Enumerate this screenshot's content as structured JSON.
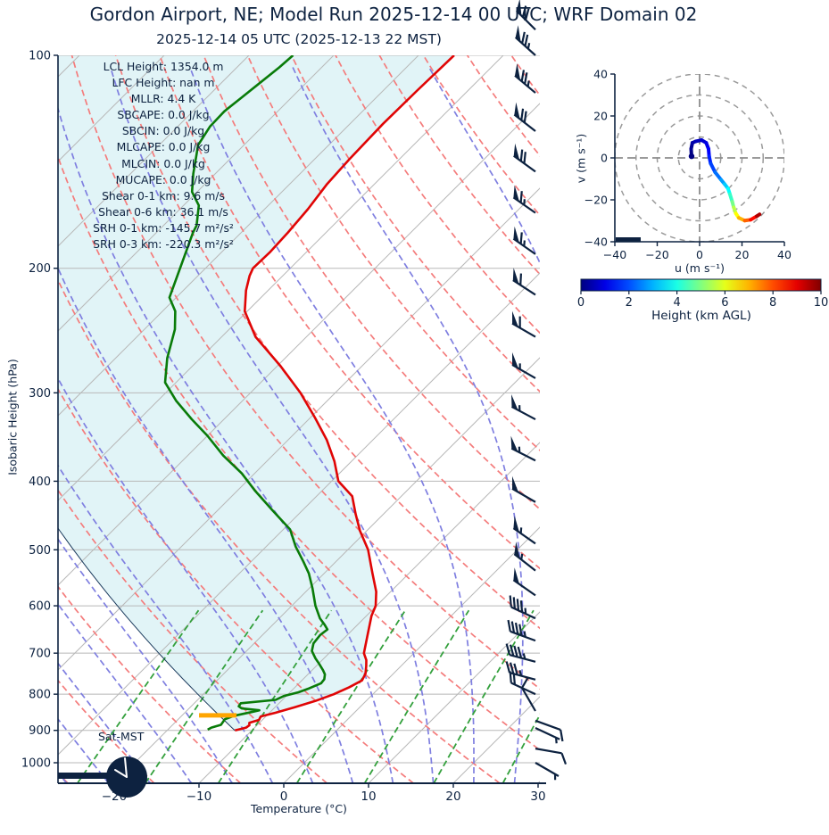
{
  "header": {
    "title": "Gordon Airport, NE; Model Run 2025-12-14 00 UTC; WRF Domain 02",
    "subtitle": "2025-12-14 05 UTC  (2025-12-13 22 MST)"
  },
  "colors": {
    "accent": "#0d2240",
    "temperature": "#e00505",
    "dewpoint": "#097b09",
    "parcel": "#1a3a5c",
    "isotherm": "#b8b8b8",
    "pressure_grid": "#b8b8b8",
    "dry_adiabat": "#f47c7c",
    "moist_adiabat": "#7f7fe0",
    "mixing_ratio": "#33a03c",
    "shade": "#e1f4f7",
    "lcl_marker": "#ffa500",
    "hodo_grid": "#9a9a9a"
  },
  "skewt": {
    "xlabel": "Temperature (°C)",
    "ylabel": "Isobaric Height (hPa)",
    "x_ticks": [
      -20,
      -10,
      0,
      10,
      20,
      30
    ],
    "p_ticks": [
      100,
      200,
      300,
      400,
      500,
      600,
      700,
      800,
      900,
      1000
    ],
    "sat_label": "Sat-MST",
    "clock_time_local": "22:00",
    "annotations": [
      "LCL Height: 1354.0 m",
      "LFC Height: nan m",
      "MLLR: 4.4 K",
      "SBCAPE: 0.0 J/kg",
      "SBCIN: 0.0 J/kg",
      "MLCAPE: 0.0 J/kg",
      "MLCIN: 0.0 J/kg",
      "MUCAPE: 0.0 J/kg",
      "Shear 0-1 km: 9.6 m/s",
      "Shear 0-6 km: 36.1 m/s",
      "SRH 0-1 km: -145.7 m²/s²",
      "SRH 0-3 km: -220.3 m²/s²"
    ]
  },
  "hodograph": {
    "xlabel": "u (m s⁻¹)",
    "ylabel": "v (m s⁻¹)",
    "x_ticks": [
      -40,
      -20,
      0,
      20,
      40
    ],
    "y_ticks": [
      -40,
      -20,
      0,
      20,
      40
    ],
    "rings": [
      10,
      20,
      30,
      40
    ]
  },
  "colorbar": {
    "label": "Height (km AGL)",
    "ticks": [
      0,
      2,
      4,
      6,
      8,
      10
    ],
    "min": 0,
    "max": 10,
    "colormap": "jet"
  },
  "chart_data": {
    "type": "line",
    "title": "Skew-T log-P sounding with hodograph, Gordon Airport NE, WRF Domain 02",
    "xlabel": "Temperature (°C)",
    "ylabel": "Isobaric Height (hPa)",
    "x_range": [
      -26.6,
      30.2
    ],
    "p_range": [
      100,
      1069
    ],
    "y_scale": "log",
    "skew_deg": 45,
    "series": [
      {
        "name": "temperature",
        "color": "#e00505",
        "points_p_T": [
          [
            900,
            -12.0
          ],
          [
            892,
            -11.0
          ],
          [
            885,
            -10.9
          ],
          [
            878,
            -11.2
          ],
          [
            870,
            -10.4
          ],
          [
            860,
            -10.6
          ],
          [
            850,
            -9.3
          ],
          [
            835,
            -7.7
          ],
          [
            818,
            -6.0
          ],
          [
            800,
            -4.6
          ],
          [
            782,
            -3.6
          ],
          [
            765,
            -2.9
          ],
          [
            748,
            -3.3
          ],
          [
            730,
            -4.1
          ],
          [
            716,
            -4.8
          ],
          [
            700,
            -5.9
          ],
          [
            660,
            -7.6
          ],
          [
            620,
            -9.4
          ],
          [
            600,
            -10.1
          ],
          [
            573,
            -11.7
          ],
          [
            540,
            -14.3
          ],
          [
            500,
            -17.6
          ],
          [
            470,
            -20.8
          ],
          [
            445,
            -23.3
          ],
          [
            420,
            -25.8
          ],
          [
            400,
            -29.2
          ],
          [
            375,
            -32.0
          ],
          [
            350,
            -35.4
          ],
          [
            325,
            -39.5
          ],
          [
            300,
            -44.1
          ],
          [
            275,
            -49.6
          ],
          [
            250,
            -56.0
          ],
          [
            230,
            -60.3
          ],
          [
            215,
            -62.6
          ],
          [
            205,
            -63.9
          ],
          [
            200,
            -64.4
          ],
          [
            190,
            -64.3
          ],
          [
            178,
            -64.5
          ],
          [
            165,
            -64.9
          ],
          [
            152,
            -65.6
          ],
          [
            140,
            -65.9
          ],
          [
            125,
            -66.1
          ],
          [
            112,
            -66.0
          ],
          [
            100,
            -65.8
          ]
        ]
      },
      {
        "name": "dewpoint",
        "color": "#097b09",
        "points_p_T": [
          [
            898,
            -15.3
          ],
          [
            892,
            -15.1
          ],
          [
            884,
            -14.3
          ],
          [
            876,
            -14.4
          ],
          [
            868,
            -14.5
          ],
          [
            858,
            -13.8
          ],
          [
            848,
            -12.2
          ],
          [
            843,
            -11.5
          ],
          [
            838,
            -13.8
          ],
          [
            832,
            -14.4
          ],
          [
            824,
            -14.5
          ],
          [
            815,
            -10.8
          ],
          [
            805,
            -10.3
          ],
          [
            795,
            -9.0
          ],
          [
            785,
            -8.2
          ],
          [
            772,
            -7.4
          ],
          [
            762,
            -7.5
          ],
          [
            750,
            -8.0
          ],
          [
            740,
            -8.7
          ],
          [
            725,
            -9.9
          ],
          [
            712,
            -11.0
          ],
          [
            695,
            -12.3
          ],
          [
            678,
            -13.0
          ],
          [
            660,
            -13.2
          ],
          [
            648,
            -13.0
          ],
          [
            638,
            -13.9
          ],
          [
            625,
            -15.2
          ],
          [
            600,
            -17.2
          ],
          [
            567,
            -19.6
          ],
          [
            540,
            -21.8
          ],
          [
            520,
            -23.8
          ],
          [
            495,
            -26.5
          ],
          [
            468,
            -29.2
          ],
          [
            440,
            -33.5
          ],
          [
            412,
            -38.0
          ],
          [
            390,
            -41.5
          ],
          [
            368,
            -45.8
          ],
          [
            345,
            -50.0
          ],
          [
            327,
            -53.8
          ],
          [
            308,
            -57.8
          ],
          [
            290,
            -61.3
          ],
          [
            268,
            -63.9
          ],
          [
            244,
            -66.4
          ],
          [
            230,
            -68.5
          ],
          [
            220,
            -70.8
          ],
          [
            200,
            -73.0
          ],
          [
            178,
            -75.7
          ],
          [
            174,
            -76.1
          ],
          [
            163,
            -78.2
          ],
          [
            156,
            -80.6
          ],
          [
            147,
            -82.6
          ],
          [
            138,
            -84.5
          ],
          [
            134,
            -85.4
          ],
          [
            126,
            -86.2
          ],
          [
            120,
            -86.3
          ],
          [
            115,
            -85.9
          ],
          [
            110,
            -85.5
          ],
          [
            104,
            -85.0
          ],
          [
            100,
            -84.8
          ]
        ]
      },
      {
        "name": "parcel_trace",
        "color": "#1a3a5c",
        "start_p_hPa": 900,
        "start_T_C": -12.0,
        "theta_K": 269.1
      }
    ],
    "lcl": {
      "pressure_hPa": 857,
      "temperature_C": -15.8,
      "height_m": 1354.0
    },
    "wind_barbs_p_dir_kt": [
      [
        92,
        315,
        70
      ],
      [
        100,
        312,
        75
      ],
      [
        113,
        310,
        75
      ],
      [
        128,
        308,
        70
      ],
      [
        146,
        306,
        70
      ],
      [
        167,
        305,
        65
      ],
      [
        191,
        305,
        65
      ],
      [
        218,
        303,
        60
      ],
      [
        250,
        300,
        60
      ],
      [
        286,
        300,
        55
      ],
      [
        327,
        298,
        55
      ],
      [
        374,
        297,
        55
      ],
      [
        428,
        300,
        50
      ],
      [
        490,
        305,
        55
      ],
      [
        535,
        308,
        55
      ],
      [
        580,
        305,
        50
      ],
      [
        625,
        295,
        47
      ],
      [
        672,
        290,
        47
      ],
      [
        720,
        285,
        47
      ],
      [
        763,
        285,
        35
      ],
      [
        800,
        295,
        20
      ],
      [
        845,
        330,
        10
      ],
      [
        872,
        110,
        10
      ],
      [
        893,
        115,
        5
      ],
      [
        955,
        100,
        10
      ],
      [
        1000,
        120,
        5
      ]
    ],
    "hodograph": {
      "u_range": [
        -40,
        40
      ],
      "v_range": [
        -40,
        40
      ],
      "rings": [
        10,
        20,
        30,
        40
      ],
      "points_u_v_hkm": [
        [
          -3.8,
          0.8,
          0.0
        ],
        [
          -4.0,
          4.3,
          0.15
        ],
        [
          -3.4,
          7.2,
          0.3
        ],
        [
          -1.8,
          7.9,
          0.5
        ],
        [
          0.9,
          8.5,
          0.7
        ],
        [
          3.1,
          7.2,
          0.9
        ],
        [
          4.2,
          4.3,
          1.1
        ],
        [
          4.5,
          0.8,
          1.4
        ],
        [
          5.2,
          -2.6,
          1.7
        ],
        [
          7.3,
          -6.8,
          2.1
        ],
        [
          10.1,
          -10.4,
          2.6
        ],
        [
          11.8,
          -12.5,
          3.0
        ],
        [
          13.4,
          -14.6,
          3.5
        ],
        [
          14.3,
          -17.3,
          4.0
        ],
        [
          15.4,
          -20.9,
          4.6
        ],
        [
          16.1,
          -23.6,
          5.2
        ],
        [
          17.1,
          -26.5,
          5.9
        ],
        [
          18.5,
          -28.6,
          6.6
        ],
        [
          21.3,
          -29.9,
          7.4
        ],
        [
          24.1,
          -29.5,
          8.2
        ],
        [
          27.0,
          -27.8,
          9.1
        ],
        [
          28.3,
          -26.9,
          10.0
        ]
      ]
    },
    "indices": {
      "lcl_height_m": 1354.0,
      "lfc_height_m": "nan",
      "mllr_K": 4.4,
      "sbcape_jkg": 0.0,
      "sbcin_jkg": 0.0,
      "mlcape_jkg": 0.0,
      "mlcin_jkg": 0.0,
      "mucape_jkg": 0.0,
      "shear_0_1km_ms": 9.6,
      "shear_0_6km_ms": 36.1,
      "srh_0_1km_m2s2": -145.7,
      "srh_0_3km_m2s2": -220.3
    }
  }
}
